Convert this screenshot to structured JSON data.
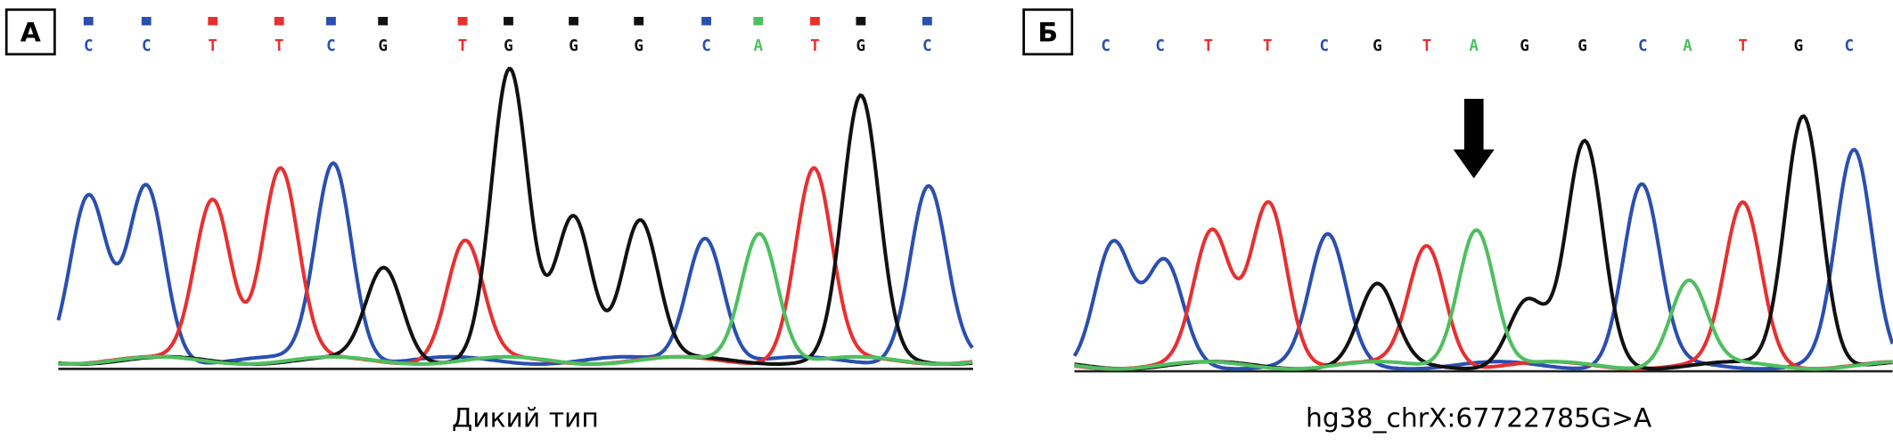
{
  "panels": [
    {
      "label": "А",
      "bases": [
        "C",
        "C",
        "T",
        "T",
        "C",
        "G",
        "T",
        "G",
        "G",
        "G",
        "C",
        "A",
        "T",
        "G",
        "C"
      ],
      "caption": "Дикий тип"
    },
    {
      "label": "Б",
      "bases": [
        "C",
        "C",
        "T",
        "T",
        "C",
        "G",
        "T",
        "A",
        "G",
        "G",
        "C",
        "A",
        "T",
        "G",
        "C"
      ],
      "caption": "hg38_chrX:67722785G>A"
    }
  ]
}
